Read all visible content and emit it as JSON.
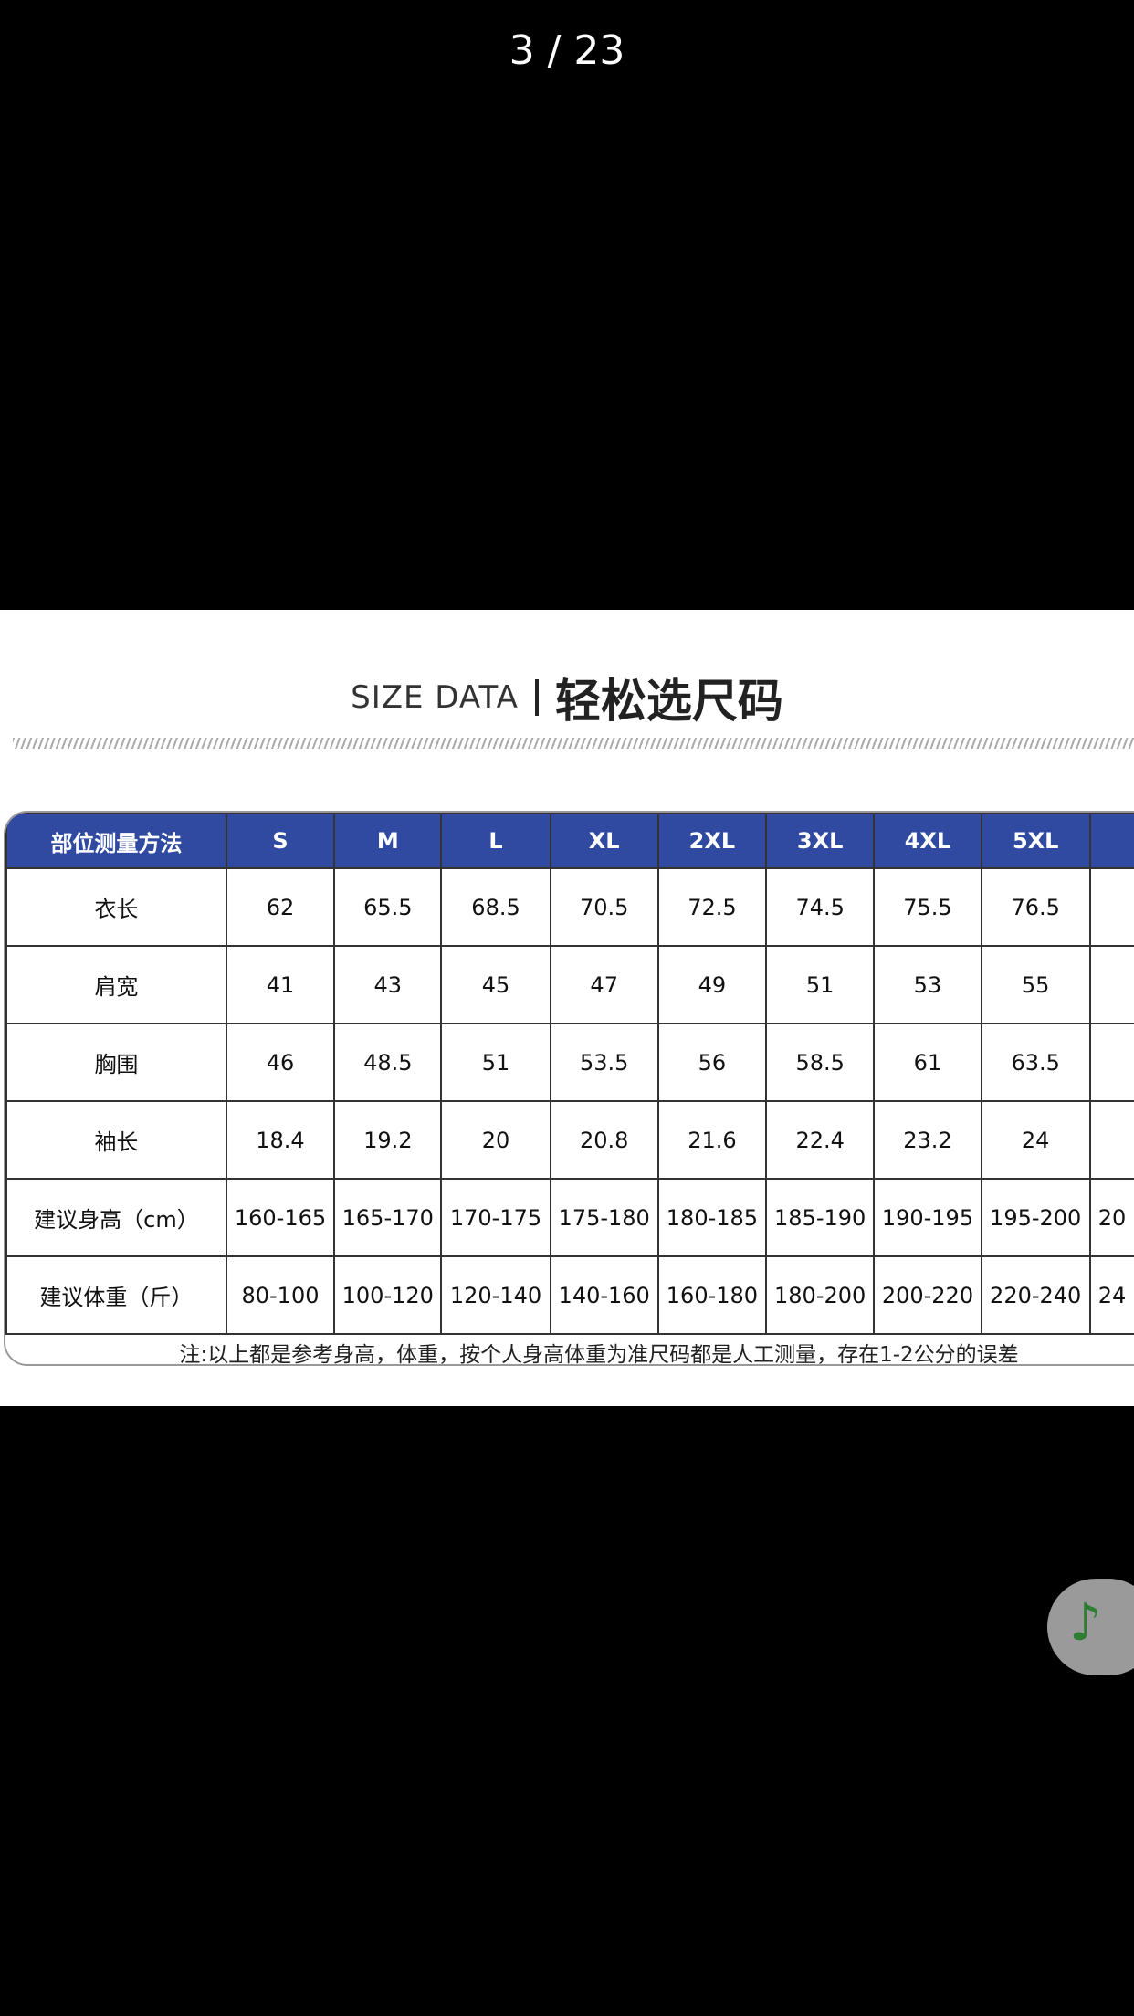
{
  "viewer": {
    "counter": "3 / 23"
  },
  "size_chart": {
    "title_en": "SIZE DATA",
    "title_cn": "轻松选尺码",
    "header": [
      "部位测量方法",
      "S",
      "M",
      "L",
      "XL",
      "2XL",
      "3XL",
      "4XL",
      "5XL",
      ""
    ],
    "rows": [
      {
        "label": "衣长",
        "values": [
          "62",
          "65.5",
          "68.5",
          "70.5",
          "72.5",
          "74.5",
          "75.5",
          "76.5",
          ""
        ]
      },
      {
        "label": "肩宽",
        "values": [
          "41",
          "43",
          "45",
          "47",
          "49",
          "51",
          "53",
          "55",
          ""
        ]
      },
      {
        "label": "胸围",
        "values": [
          "46",
          "48.5",
          "51",
          "53.5",
          "56",
          "58.5",
          "61",
          "63.5",
          ""
        ]
      },
      {
        "label": "袖长",
        "values": [
          "18.4",
          "19.2",
          "20",
          "20.8",
          "21.6",
          "22.4",
          "23.2",
          "24",
          ""
        ]
      },
      {
        "label": "建议身高（cm）",
        "values": [
          "160-165",
          "165-170",
          "170-175",
          "175-180",
          "180-185",
          "185-190",
          "190-195",
          "195-200",
          "20"
        ]
      },
      {
        "label": "建议体重（斤）",
        "values": [
          "80-100",
          "100-120",
          "120-140",
          "140-160",
          "160-180",
          "180-200",
          "200-220",
          "220-240",
          "24"
        ]
      }
    ],
    "note": "注:以上都是参考身高，体重，按个人身高体重为准尺码都是人工测量，存在1-2公分的误差"
  },
  "music_button": {
    "icon": "music-note-icon",
    "color": "#2e7d32"
  }
}
